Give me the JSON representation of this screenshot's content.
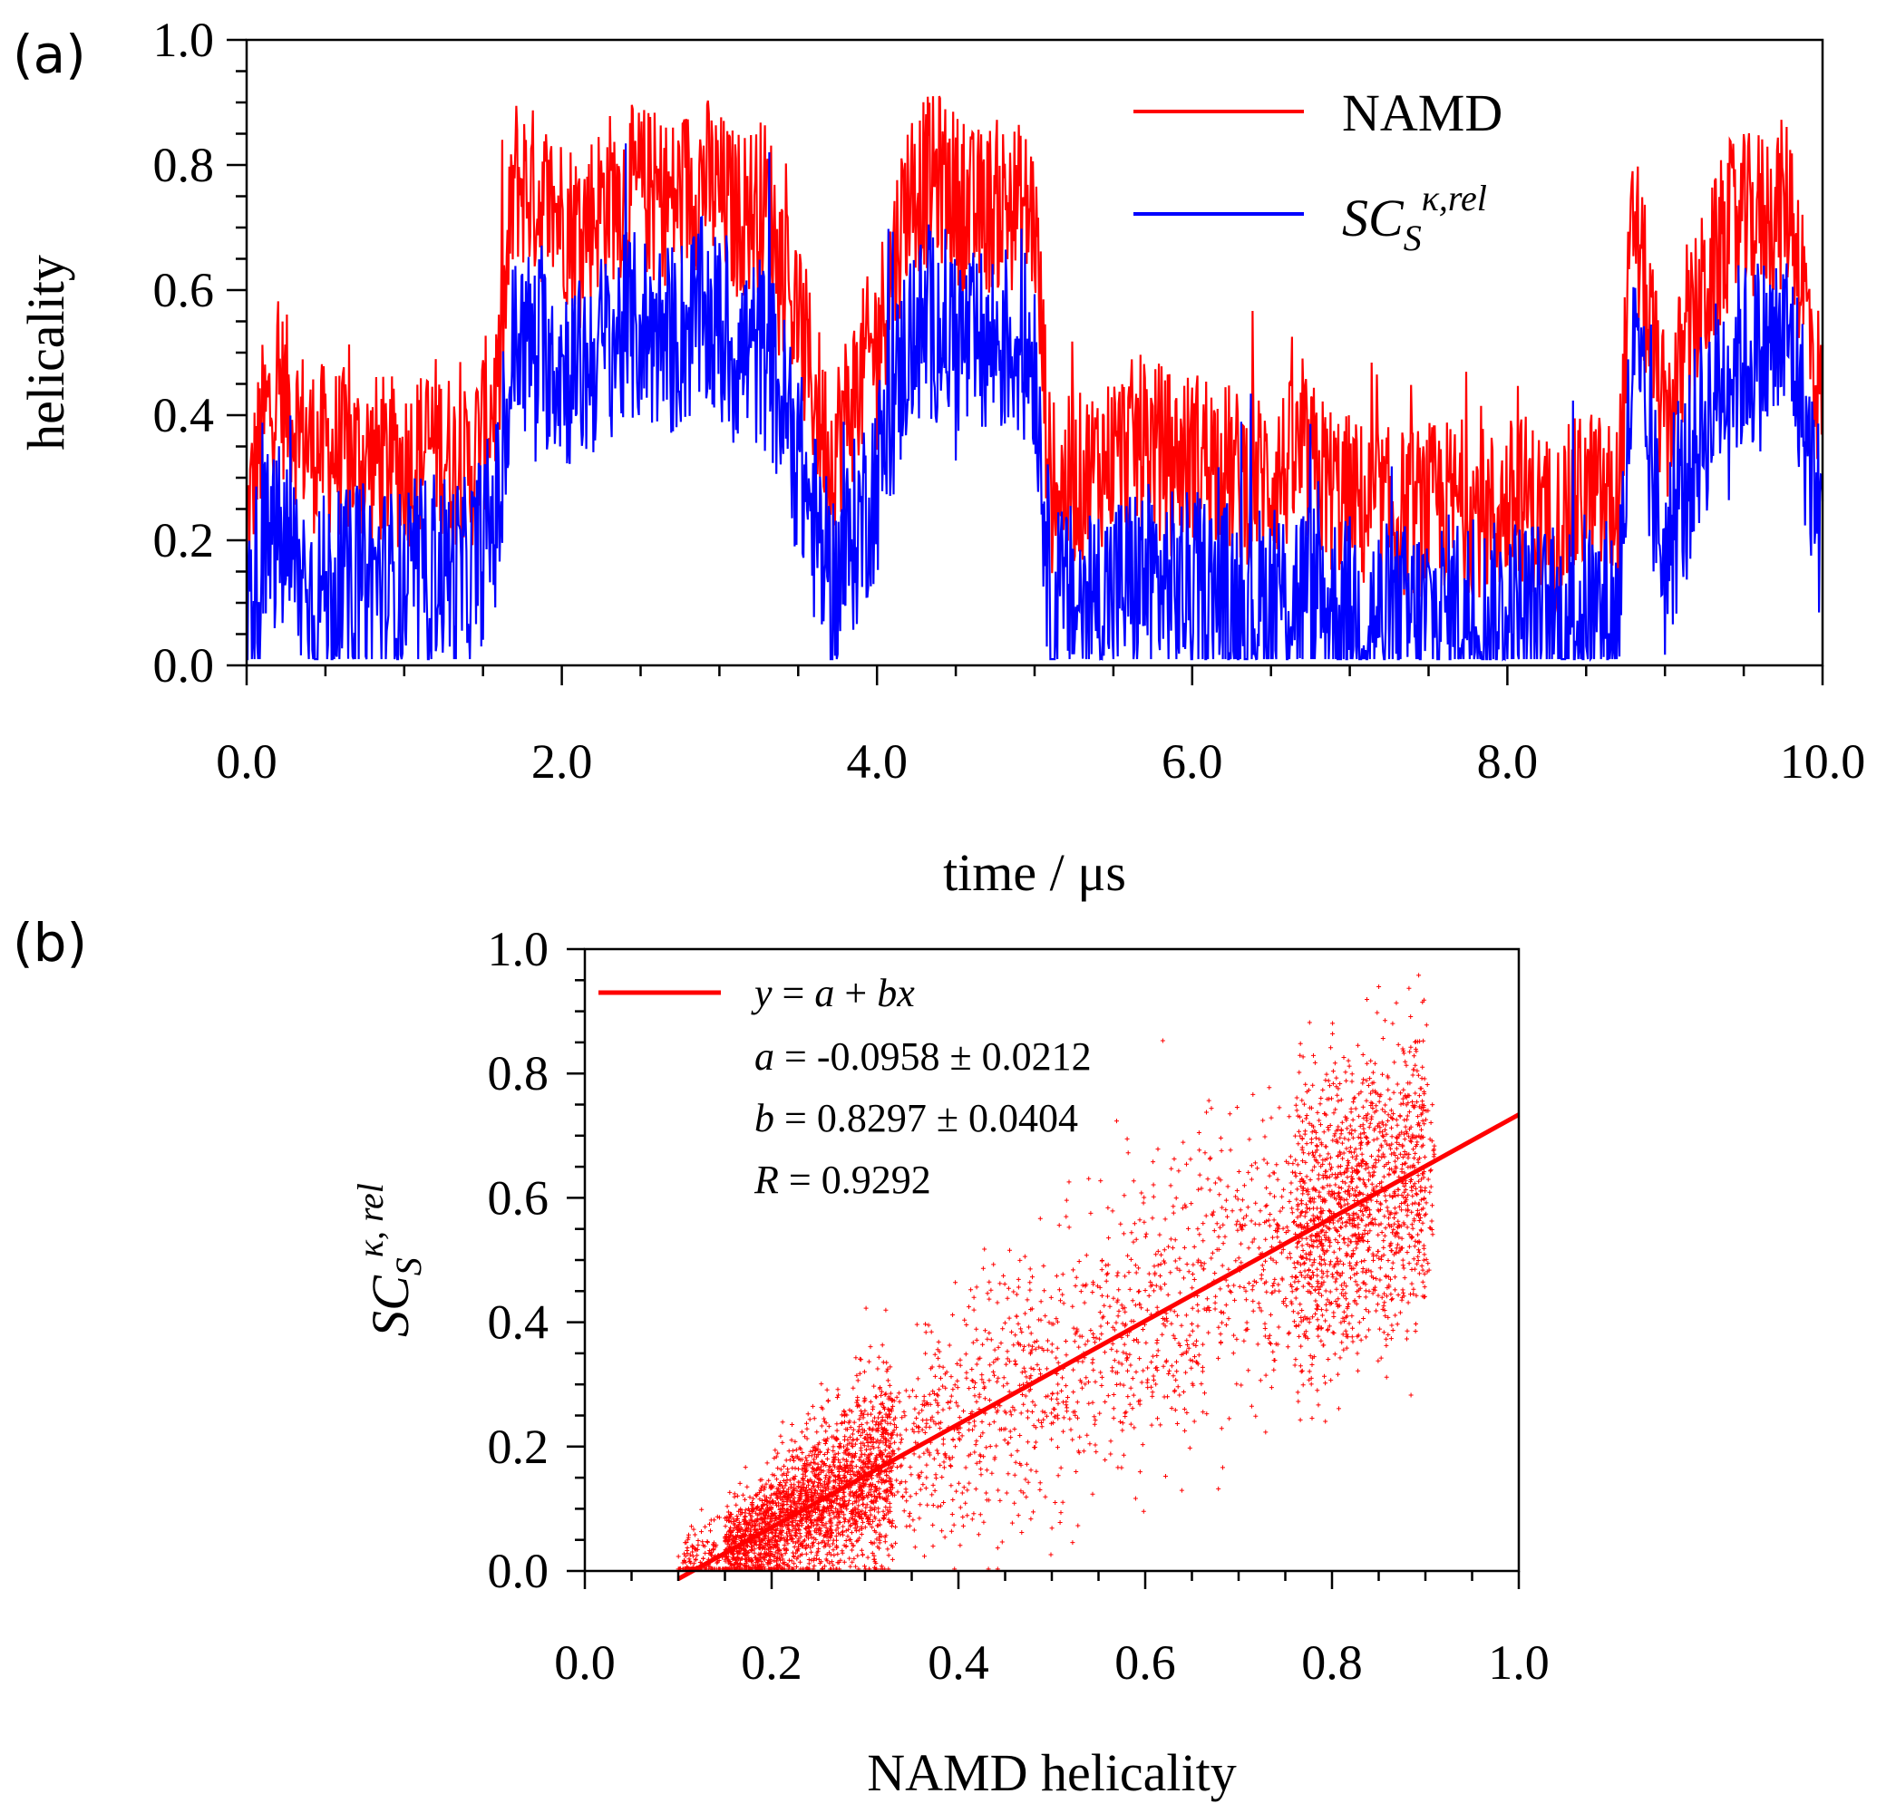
{
  "chart_data": [
    {
      "panel": "(a)",
      "type": "line",
      "xlabel": "time / μs",
      "ylabel": "helicality",
      "xlim": [
        0,
        10
      ],
      "ylim": [
        0,
        1
      ],
      "x_ticks": [
        "0.0",
        "2.0",
        "4.0",
        "6.0",
        "8.0",
        "10.0"
      ],
      "y_ticks": [
        "0.0",
        "0.2",
        "0.4",
        "0.6",
        "0.8",
        "1.0"
      ],
      "legend_position": "top-right",
      "series": [
        {
          "name": "NAMD",
          "color": "#ff0000",
          "x": [
            0.0,
            0.1,
            0.2,
            0.4,
            0.6,
            0.8,
            1.0,
            1.2,
            1.4,
            1.6,
            1.7,
            1.9,
            2.1,
            2.3,
            2.5,
            2.7,
            2.9,
            3.1,
            3.3,
            3.5,
            3.7,
            3.8,
            4.0,
            4.2,
            4.4,
            4.6,
            4.8,
            5.0,
            5.1,
            5.3,
            5.5,
            5.7,
            5.9,
            6.1,
            6.3,
            6.5,
            6.7,
            6.9,
            7.1,
            7.3,
            7.5,
            7.7,
            7.9,
            8.1,
            8.3,
            8.5,
            8.7,
            8.8,
            9.0,
            9.2,
            9.4,
            9.6,
            9.8,
            10.0
          ],
          "y": [
            0.22,
            0.38,
            0.45,
            0.35,
            0.34,
            0.33,
            0.32,
            0.36,
            0.3,
            0.45,
            0.78,
            0.74,
            0.7,
            0.75,
            0.76,
            0.74,
            0.78,
            0.72,
            0.74,
            0.55,
            0.33,
            0.4,
            0.52,
            0.76,
            0.78,
            0.72,
            0.74,
            0.72,
            0.28,
            0.3,
            0.34,
            0.36,
            0.33,
            0.34,
            0.3,
            0.3,
            0.33,
            0.28,
            0.25,
            0.24,
            0.25,
            0.26,
            0.24,
            0.27,
            0.22,
            0.28,
            0.25,
            0.72,
            0.38,
            0.56,
            0.7,
            0.72,
            0.74,
            0.4
          ]
        },
        {
          "name": "SC_S^κ,rel",
          "color": "#0000ff",
          "x": [
            0.0,
            0.1,
            0.2,
            0.4,
            0.6,
            0.8,
            1.0,
            1.2,
            1.4,
            1.6,
            1.7,
            1.9,
            2.1,
            2.3,
            2.5,
            2.7,
            2.9,
            3.1,
            3.3,
            3.5,
            3.7,
            3.8,
            4.0,
            4.2,
            4.4,
            4.6,
            4.8,
            5.0,
            5.1,
            5.3,
            5.5,
            5.7,
            5.9,
            6.1,
            6.3,
            6.5,
            6.7,
            6.9,
            7.1,
            7.3,
            7.5,
            7.7,
            7.9,
            8.1,
            8.3,
            8.5,
            8.7,
            8.8,
            9.0,
            9.2,
            9.4,
            9.6,
            9.8,
            10.0
          ],
          "y": [
            0.08,
            0.18,
            0.2,
            0.12,
            0.12,
            0.14,
            0.12,
            0.16,
            0.14,
            0.25,
            0.52,
            0.5,
            0.46,
            0.52,
            0.54,
            0.52,
            0.56,
            0.5,
            0.5,
            0.33,
            0.12,
            0.17,
            0.3,
            0.52,
            0.55,
            0.5,
            0.52,
            0.5,
            0.1,
            0.1,
            0.12,
            0.14,
            0.12,
            0.12,
            0.1,
            0.1,
            0.12,
            0.09,
            0.08,
            0.07,
            0.08,
            0.09,
            0.07,
            0.09,
            0.06,
            0.09,
            0.08,
            0.5,
            0.16,
            0.36,
            0.48,
            0.5,
            0.52,
            0.2
          ]
        }
      ],
      "legend": {
        "namd_label": "NAMD",
        "sc_base": "SC",
        "sc_sub": "S",
        "sc_sup": "κ,rel"
      }
    },
    {
      "panel": "(b)",
      "type": "scatter",
      "xlabel": "NAMD helicality",
      "ylabel": "SC_S^κ, rel",
      "xlim": [
        0,
        1
      ],
      "ylim": [
        0,
        1
      ],
      "x_ticks": [
        "0.0",
        "0.2",
        "0.4",
        "0.6",
        "0.8",
        "1.0"
      ],
      "y_ticks": [
        "0.0",
        "0.2",
        "0.4",
        "0.6",
        "0.8",
        "1.0"
      ],
      "point_color": "#ff0000",
      "x_range_of_points": [
        0.1,
        0.91
      ],
      "fit": {
        "a": -0.0958,
        "b": 0.8297,
        "R": 0.9292
      },
      "ylabel_parts": {
        "base": "SC",
        "sub": "S",
        "sup": "κ, rel"
      },
      "legend_lines": {
        "eq_y": "y",
        "eq_eq": " = ",
        "eq_a": "a",
        "eq_plus": " + ",
        "eq_bx": "bx",
        "a_var": "a",
        "a_val": " = -0.0958 ± 0.0212",
        "b_var": "b",
        "b_val": " = 0.8297 ± 0.0404",
        "r_var": "R",
        "r_val": " = 0.9292"
      }
    }
  ],
  "panel_labels": {
    "a": "(a)",
    "b": "(b)"
  }
}
